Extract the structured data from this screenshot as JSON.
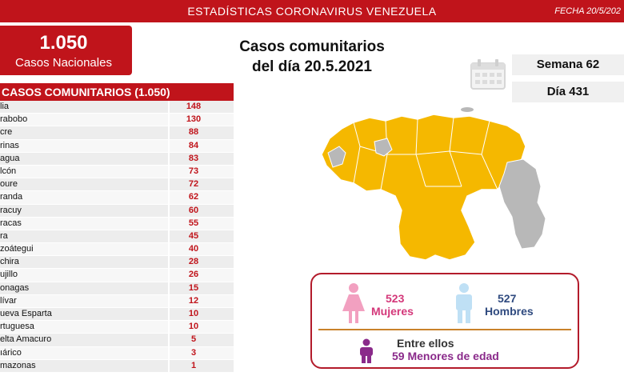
{
  "header": {
    "title": "ESTADÍSTICAS CORONAVIRUS VENEZUELA",
    "date": "FECHA 20/5/202"
  },
  "national": {
    "count": "1.050",
    "label": "Casos Nacionales"
  },
  "heading": {
    "line1": "Casos comunitarios",
    "line2": "del día 20.5.2021"
  },
  "calendar": {
    "icon": "calendar-icon"
  },
  "week": "Semana 62",
  "day": "Día 431",
  "table": {
    "header": "CASOS COMUNITARIOS (1.050)",
    "rows": [
      {
        "state": "lia",
        "cases": "148"
      },
      {
        "state": "rabobo",
        "cases": "130"
      },
      {
        "state": "cre",
        "cases": "88"
      },
      {
        "state": "rinas",
        "cases": "84"
      },
      {
        "state": "agua",
        "cases": "83"
      },
      {
        "state": "lcón",
        "cases": "73"
      },
      {
        "state": "oure",
        "cases": "72"
      },
      {
        "state": "randa",
        "cases": "62"
      },
      {
        "state": "racuy",
        "cases": "60"
      },
      {
        "state": "racas",
        "cases": "55"
      },
      {
        "state": "ra",
        "cases": "45"
      },
      {
        "state": "zoátegui",
        "cases": "40"
      },
      {
        "state": "chira",
        "cases": "28"
      },
      {
        "state": "ujillo",
        "cases": "26"
      },
      {
        "state": "onagas",
        "cases": "15"
      },
      {
        "state": "lívar",
        "cases": "12"
      },
      {
        "state": "ueva Esparta",
        "cases": "10"
      },
      {
        "state": "rtuguesa",
        "cases": "10"
      },
      {
        "state": "elta Amacuro",
        "cases": "5"
      },
      {
        "state": "ıárico",
        "cases": "3"
      },
      {
        "state": "mazonas",
        "cases": "1"
      }
    ]
  },
  "map": {
    "highlight": "#f5b800",
    "neutral": "#b8b8b8"
  },
  "gender": {
    "women_count": "523",
    "women_label": "Mujeres",
    "men_count": "527",
    "men_label": "Hombres",
    "among": "Entre ellos",
    "minors": "59 Menores de edad"
  },
  "colors": {
    "brand_red": "#c0141b",
    "women": "#d4387a",
    "men": "#2f4a7f",
    "minors": "#8a2a8a"
  }
}
